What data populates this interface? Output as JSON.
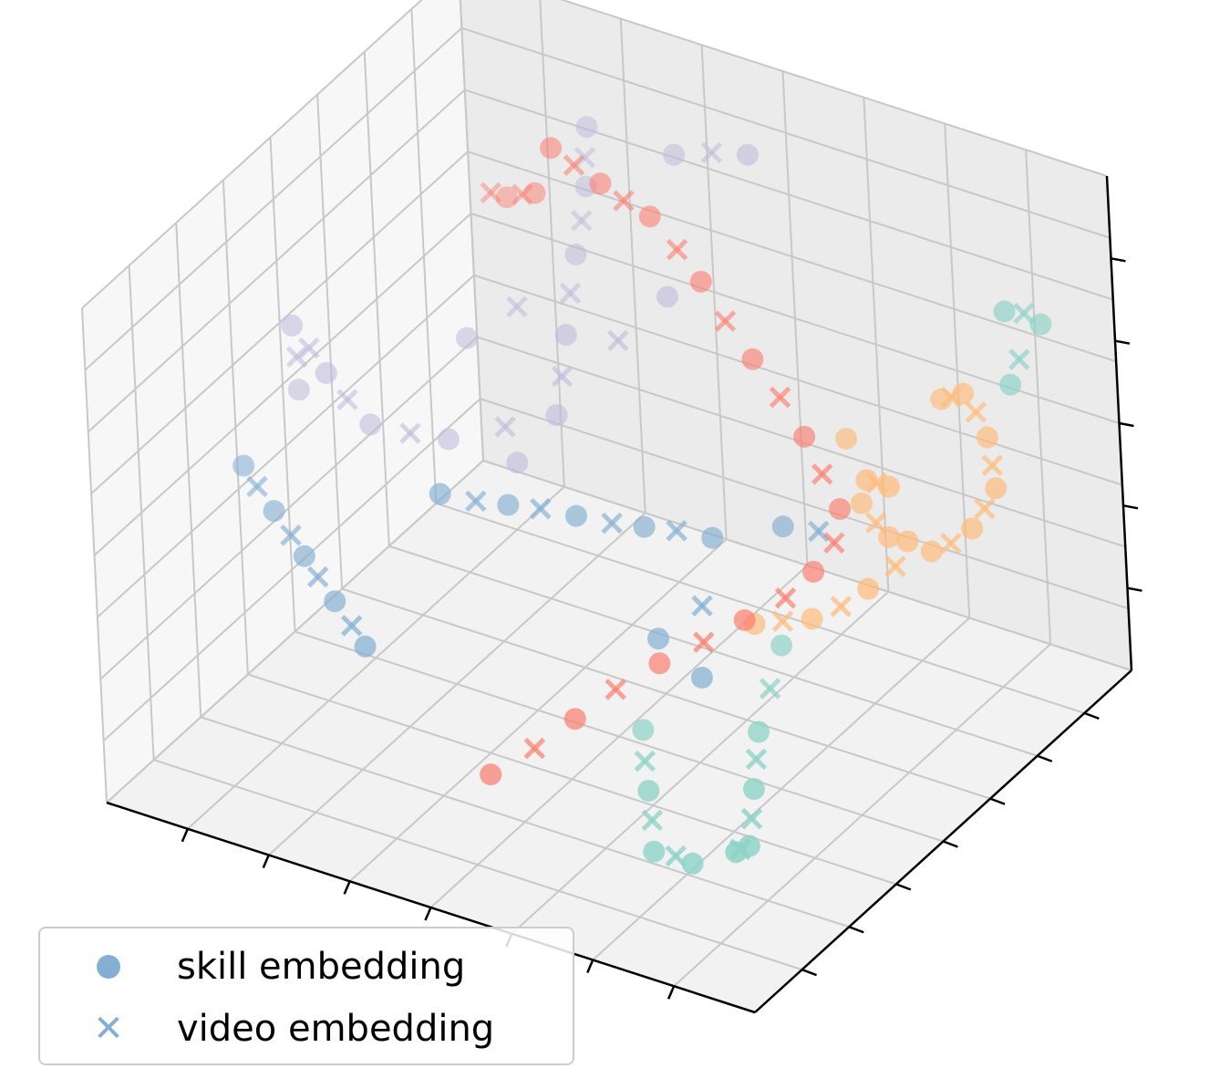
{
  "chart_data": {
    "type": "scatter",
    "projection": "3d",
    "grid": true,
    "legend_placement": "lower-left",
    "axes": {
      "x": {
        "ticklabels": "none",
        "lim": [
          -1,
          1
        ]
      },
      "y": {
        "ticklabels": "none",
        "lim": [
          -1,
          1
        ]
      },
      "z": {
        "ticklabels": "none",
        "lim": [
          -1,
          1
        ]
      }
    },
    "legend": [
      {
        "label": "skill embedding",
        "marker": "circle",
        "color": "#84afd2"
      },
      {
        "label": "video embedding",
        "marker": "x",
        "color": "#84afd2"
      }
    ],
    "clusters": [
      {
        "color": "#fa8072",
        "skill": [
          [
            -0.4,
            0.45,
            0.9
          ],
          [
            -0.25,
            0.45,
            0.82
          ],
          [
            -0.1,
            0.45,
            0.75
          ],
          [
            0.05,
            0.45,
            0.55
          ],
          [
            0.2,
            0.45,
            0.3
          ],
          [
            0.35,
            0.45,
            0.05
          ],
          [
            0.45,
            0.45,
            -0.2
          ],
          [
            0.45,
            0.3,
            -0.35
          ],
          [
            0.35,
            0.1,
            -0.45
          ],
          [
            0.2,
            -0.1,
            -0.55
          ],
          [
            0.05,
            -0.3,
            -0.7
          ],
          [
            -0.1,
            -0.5,
            -0.85
          ],
          [
            -0.55,
            0.6,
            0.55
          ],
          [
            -0.7,
            0.7,
            0.4
          ]
        ],
        "video": [
          [
            -0.33,
            0.45,
            0.86
          ],
          [
            -0.18,
            0.45,
            0.78
          ],
          [
            -0.02,
            0.45,
            0.65
          ],
          [
            0.12,
            0.45,
            0.42
          ],
          [
            0.28,
            0.45,
            0.18
          ],
          [
            0.4,
            0.45,
            -0.08
          ],
          [
            0.47,
            0.38,
            -0.28
          ],
          [
            0.42,
            0.2,
            -0.4
          ],
          [
            0.28,
            0.0,
            -0.5
          ],
          [
            0.12,
            -0.2,
            -0.62
          ],
          [
            -0.02,
            -0.4,
            -0.78
          ],
          [
            -0.62,
            0.65,
            0.48
          ],
          [
            -0.78,
            0.75,
            0.35
          ]
        ]
      },
      {
        "color": "#bfbadb",
        "skill": [
          [
            -0.5,
            0.8,
            0.7
          ],
          [
            -0.45,
            0.7,
            0.55
          ],
          [
            -0.4,
            0.55,
            0.4
          ],
          [
            -0.35,
            0.4,
            0.2
          ],
          [
            -0.3,
            0.25,
            0.0
          ],
          [
            -0.55,
            0.1,
            -0.1
          ],
          [
            -0.7,
            -0.05,
            0.0
          ],
          [
            -0.8,
            -0.1,
            0.2
          ],
          [
            -0.9,
            -0.1,
            0.35
          ],
          [
            -0.95,
            0.0,
            0.0
          ],
          [
            -0.6,
            0.3,
            0.15
          ],
          [
            -0.2,
            0.75,
            0.75
          ],
          [
            0.0,
            0.8,
            0.8
          ],
          [
            -0.15,
            0.6,
            0.3
          ],
          [
            -0.4,
            0.2,
            -0.2
          ]
        ],
        "video": [
          [
            -0.48,
            0.75,
            0.62
          ],
          [
            -0.42,
            0.62,
            0.48
          ],
          [
            -0.38,
            0.48,
            0.3
          ],
          [
            -0.32,
            0.32,
            0.1
          ],
          [
            -0.42,
            0.18,
            -0.05
          ],
          [
            -0.62,
            0.02,
            -0.05
          ],
          [
            -0.75,
            -0.08,
            0.1
          ],
          [
            -0.85,
            -0.1,
            0.28
          ],
          [
            -0.92,
            -0.05,
            0.18
          ],
          [
            -0.5,
            0.4,
            0.25
          ],
          [
            -0.1,
            0.78,
            0.78
          ],
          [
            -0.25,
            0.5,
            0.15
          ]
        ]
      },
      {
        "color": "#84afd2",
        "skill": [
          [
            -0.95,
            -0.3,
            -0.1
          ],
          [
            -0.8,
            -0.4,
            -0.15
          ],
          [
            -0.65,
            -0.5,
            -0.2
          ],
          [
            -0.5,
            -0.6,
            -0.25
          ],
          [
            -0.35,
            -0.7,
            -0.3
          ],
          [
            -0.4,
            -0.2,
            -0.05
          ],
          [
            -0.25,
            -0.1,
            -0.1
          ],
          [
            -0.1,
            0.0,
            -0.15
          ],
          [
            0.05,
            0.1,
            -0.2
          ],
          [
            0.2,
            0.2,
            -0.25
          ],
          [
            0.3,
            0.4,
            -0.3
          ],
          [
            0.2,
            -0.1,
            -0.45
          ],
          [
            0.3,
            -0.05,
            -0.6
          ]
        ],
        "video": [
          [
            -0.88,
            -0.35,
            -0.12
          ],
          [
            -0.72,
            -0.45,
            -0.18
          ],
          [
            -0.58,
            -0.55,
            -0.22
          ],
          [
            -0.42,
            -0.65,
            -0.28
          ],
          [
            -0.32,
            -0.15,
            -0.08
          ],
          [
            -0.18,
            -0.05,
            -0.12
          ],
          [
            -0.02,
            0.05,
            -0.18
          ],
          [
            0.12,
            0.15,
            -0.22
          ],
          [
            0.38,
            0.45,
            -0.32
          ],
          [
            0.25,
            0.05,
            -0.4
          ]
        ]
      },
      {
        "color": "#fdbc7d",
        "skill": [
          [
            0.6,
            0.75,
            0.1
          ],
          [
            0.7,
            0.7,
            0.2
          ],
          [
            0.8,
            0.65,
            0.1
          ],
          [
            0.85,
            0.6,
            -0.05
          ],
          [
            0.8,
            0.55,
            -0.2
          ],
          [
            0.7,
            0.5,
            -0.3
          ],
          [
            0.6,
            0.45,
            -0.25
          ],
          [
            0.55,
            0.4,
            -0.1
          ],
          [
            0.6,
            0.35,
            0.05
          ],
          [
            0.7,
            0.3,
            0.1
          ],
          [
            0.75,
            0.3,
            -0.1
          ],
          [
            0.65,
            0.25,
            -0.3
          ],
          [
            0.5,
            0.2,
            -0.45
          ],
          [
            0.35,
            0.15,
            -0.5
          ],
          [
            0.45,
            0.5,
            0.05
          ]
        ],
        "video": [
          [
            0.65,
            0.72,
            0.15
          ],
          [
            0.75,
            0.68,
            0.16
          ],
          [
            0.83,
            0.62,
            0.02
          ],
          [
            0.83,
            0.57,
            -0.12
          ],
          [
            0.75,
            0.52,
            -0.26
          ],
          [
            0.58,
            0.42,
            -0.18
          ],
          [
            0.65,
            0.32,
            0.08
          ],
          [
            0.72,
            0.28,
            -0.2
          ],
          [
            0.58,
            0.22,
            -0.38
          ],
          [
            0.42,
            0.18,
            -0.48
          ]
        ]
      },
      {
        "color": "#8ed3c7",
        "skill": [
          [
            0.75,
            0.85,
            0.45
          ],
          [
            0.8,
            0.95,
            0.35
          ],
          [
            0.85,
            0.7,
            0.3
          ],
          [
            0.4,
            0.2,
            -0.6
          ],
          [
            0.5,
            -0.1,
            -0.7
          ],
          [
            0.6,
            -0.3,
            -0.75
          ],
          [
            0.7,
            -0.5,
            -0.8
          ],
          [
            0.75,
            -0.65,
            -0.7
          ],
          [
            0.55,
            -0.55,
            -0.9
          ],
          [
            0.4,
            -0.5,
            -0.95
          ],
          [
            0.3,
            -0.35,
            -0.85
          ],
          [
            0.2,
            -0.2,
            -0.75
          ]
        ],
        "video": [
          [
            0.78,
            0.9,
            0.42
          ],
          [
            0.82,
            0.8,
            0.32
          ],
          [
            0.45,
            0.05,
            -0.65
          ],
          [
            0.55,
            -0.2,
            -0.72
          ],
          [
            0.65,
            -0.4,
            -0.78
          ],
          [
            0.72,
            -0.58,
            -0.75
          ],
          [
            0.48,
            -0.52,
            -0.92
          ],
          [
            0.35,
            -0.42,
            -0.9
          ],
          [
            0.25,
            -0.28,
            -0.8
          ]
        ]
      }
    ]
  }
}
